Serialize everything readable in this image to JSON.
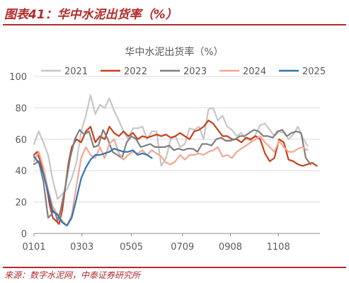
{
  "figure": {
    "title": "图表41：华中水泥出货率（%）",
    "source": "来源：数字水泥网，中泰证券研究所"
  },
  "colors": {
    "title_red": "#b22a2a",
    "grid": "#d9d9d9",
    "axis": "#888888",
    "text": "#595959"
  },
  "chart_data": {
    "type": "line",
    "title": "华中水泥出货率（%）",
    "xlabel": "",
    "ylabel": "",
    "ylim": [
      0,
      100
    ],
    "yticks": [
      0,
      20,
      40,
      60,
      80,
      100
    ],
    "xlim": [
      1,
      365
    ],
    "xtick_labels": [
      "0101",
      "0303",
      "0505",
      "0709",
      "0908",
      "1108"
    ],
    "xtick_positions": [
      1,
      62,
      125,
      190,
      251,
      312
    ],
    "grid": "horizontal",
    "legend_position": "top",
    "series": [
      {
        "name": "2021",
        "color": "#c6c6c6",
        "x": [
          1,
          7,
          13,
          19,
          25,
          31,
          37,
          43,
          49,
          55,
          61,
          67,
          73,
          79,
          85,
          91,
          97,
          103,
          109,
          115,
          121,
          127,
          133,
          139,
          145,
          151,
          157,
          163,
          169,
          175,
          181,
          187,
          193,
          199,
          205,
          211,
          217,
          223,
          229,
          235,
          241,
          247,
          253,
          259,
          265,
          271,
          277,
          283,
          289,
          295,
          301,
          307,
          313,
          319,
          325,
          331,
          337,
          343,
          349
        ],
        "values": [
          57,
          65,
          58,
          50,
          34,
          22,
          25,
          28,
          35,
          45,
          65,
          75,
          88,
          76,
          82,
          80,
          86,
          78,
          72,
          65,
          60,
          67,
          67,
          68,
          60,
          65,
          65,
          43,
          48,
          60,
          62,
          55,
          57,
          67,
          66,
          68,
          60,
          79,
          80,
          72,
          75,
          68,
          66,
          62,
          64,
          60,
          59,
          63,
          69,
          70,
          66,
          62,
          65,
          64,
          60,
          63,
          68,
          61,
          56
        ]
      },
      {
        "name": "2022",
        "color": "#c7401c",
        "x": [
          1,
          5,
          9,
          13,
          17,
          21,
          25,
          29,
          33,
          37,
          41,
          45,
          49,
          55,
          61,
          67,
          73,
          79,
          85,
          91,
          97,
          103,
          109,
          115,
          121,
          127,
          133,
          139,
          145,
          151,
          157,
          163,
          169,
          175,
          181,
          187,
          193,
          199,
          205,
          211,
          217,
          223,
          229,
          235,
          241,
          247,
          253,
          259,
          265,
          271,
          277,
          283,
          289,
          295,
          301,
          307,
          313,
          319,
          325,
          331,
          337,
          343,
          349,
          355,
          361
        ],
        "values": [
          50,
          52,
          46,
          38,
          30,
          18,
          10,
          8,
          6,
          15,
          30,
          45,
          55,
          60,
          58,
          65,
          68,
          58,
          62,
          60,
          68,
          64,
          62,
          65,
          62,
          64,
          60,
          62,
          61,
          62,
          63,
          62,
          63,
          61,
          62,
          64,
          62,
          60,
          65,
          66,
          68,
          72,
          70,
          66,
          62,
          62,
          60,
          60,
          58,
          61,
          60,
          62,
          60,
          51,
          46,
          48,
          60,
          58,
          47,
          46,
          44,
          43,
          44,
          45,
          43
        ]
      },
      {
        "name": "2023",
        "color": "#7f7f7f",
        "x": [
          1,
          7,
          13,
          19,
          23,
          27,
          31,
          35,
          41,
          47,
          53,
          59,
          65,
          71,
          77,
          83,
          89,
          95,
          101,
          107,
          113,
          119,
          125,
          131,
          137,
          143,
          149,
          155,
          161,
          167,
          173,
          179,
          185,
          191,
          197,
          203,
          209,
          215,
          221,
          227,
          233,
          239,
          245,
          251,
          257,
          263,
          269,
          275,
          281,
          287,
          293,
          299,
          305,
          311,
          317,
          323,
          329,
          335,
          341,
          347,
          353
        ],
        "values": [
          44,
          46,
          33,
          10,
          12,
          15,
          8,
          15,
          30,
          48,
          60,
          66,
          63,
          65,
          55,
          56,
          66,
          60,
          52,
          50,
          48,
          58,
          62,
          60,
          55,
          56,
          57,
          55,
          55,
          55,
          56,
          53,
          54,
          53,
          54,
          54,
          52,
          57,
          57,
          56,
          60,
          61,
          59,
          59,
          60,
          62,
          62,
          64,
          66,
          65,
          62,
          62,
          61,
          65,
          66,
          62,
          64,
          65,
          64,
          48,
          44
        ]
      },
      {
        "name": "2024",
        "color": "#f2a791",
        "x": [
          1,
          7,
          13,
          19,
          25,
          31,
          37,
          43,
          49,
          55,
          61,
          67,
          73,
          79,
          85,
          91,
          97,
          103,
          109,
          115,
          121,
          127,
          133,
          139,
          145,
          151,
          157,
          163,
          169,
          175,
          181,
          187,
          193,
          199,
          205,
          211,
          217,
          223,
          229,
          235,
          241,
          247,
          253,
          259,
          265,
          271,
          277,
          283,
          289,
          295,
          301,
          307,
          313,
          319,
          325,
          331,
          337,
          343,
          349
        ],
        "values": [
          46,
          52,
          42,
          28,
          17,
          12,
          8,
          5,
          12,
          30,
          48,
          55,
          50,
          48,
          55,
          48,
          57,
          60,
          51,
          47,
          50,
          52,
          51,
          53,
          50,
          53,
          51,
          49,
          45,
          44,
          46,
          50,
          47,
          50,
          50,
          51,
          50,
          52,
          53,
          55,
          49,
          50,
          48,
          52,
          54,
          56,
          58,
          60,
          62,
          58,
          55,
          52,
          59,
          55,
          52,
          52,
          54,
          55,
          53
        ]
      },
      {
        "name": "2025",
        "color": "#2e75b6",
        "x": [
          1,
          7,
          13,
          19,
          25,
          31,
          37,
          43,
          49,
          55,
          61,
          67,
          73,
          79,
          85,
          91,
          97,
          103,
          109,
          115,
          121,
          127,
          133,
          139,
          145,
          151
        ],
        "values": [
          49,
          45,
          38,
          26,
          14,
          12,
          7,
          5,
          10,
          22,
          35,
          42,
          47,
          50,
          50,
          51,
          52,
          54,
          53,
          52,
          52,
          53,
          50,
          51,
          50,
          48
        ]
      }
    ]
  }
}
